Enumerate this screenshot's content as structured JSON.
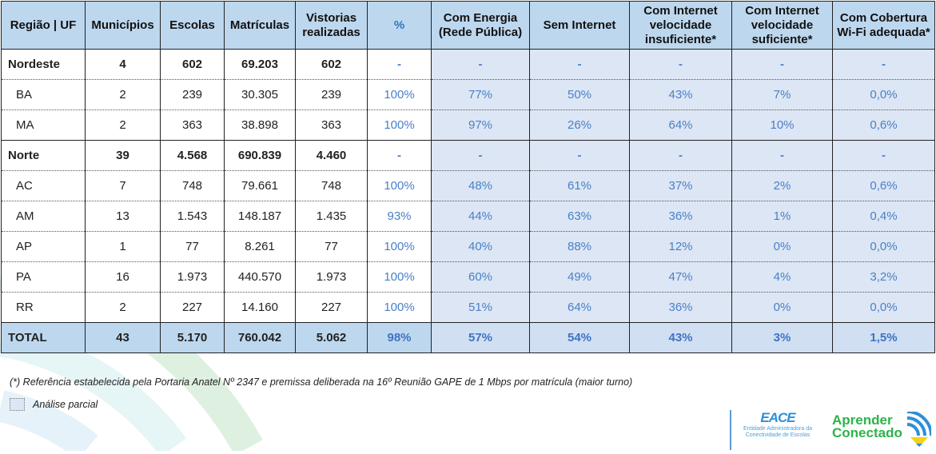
{
  "table": {
    "headers": [
      "Região | UF",
      "Municípios",
      "Escolas",
      "Matrículas",
      "Vistorias realizadas",
      "%",
      "Com Energia (Rede Pública)",
      "Sem Internet",
      "Com Internet velocidade insuficiente*",
      "Com Internet velocidade suficiente*",
      "Com Cobertura Wi-Fi adequada*"
    ],
    "rows": [
      {
        "type": "group",
        "cells": [
          "Nordeste",
          "4",
          "602",
          "69.203",
          "602",
          "-",
          "-",
          "-",
          "-",
          "-",
          "-"
        ]
      },
      {
        "type": "uf",
        "cells": [
          "BA",
          "2",
          "239",
          "30.305",
          "239",
          "100%",
          "77%",
          "50%",
          "43%",
          "7%",
          "0,0%"
        ]
      },
      {
        "type": "uf",
        "cells": [
          "MA",
          "2",
          "363",
          "38.898",
          "363",
          "100%",
          "97%",
          "26%",
          "64%",
          "10%",
          "0,6%"
        ]
      },
      {
        "type": "group",
        "cells": [
          "Norte",
          "39",
          "4.568",
          "690.839",
          "4.460",
          "-",
          "-",
          "-",
          "-",
          "-",
          "-"
        ]
      },
      {
        "type": "uf",
        "cells": [
          "AC",
          "7",
          "748",
          "79.661",
          "748",
          "100%",
          "48%",
          "61%",
          "37%",
          "2%",
          "0,6%"
        ]
      },
      {
        "type": "uf",
        "cells": [
          "AM",
          "13",
          "1.543",
          "148.187",
          "1.435",
          "93%",
          "44%",
          "63%",
          "36%",
          "1%",
          "0,4%"
        ]
      },
      {
        "type": "uf",
        "cells": [
          "AP",
          "1",
          "77",
          "8.261",
          "77",
          "100%",
          "40%",
          "88%",
          "12%",
          "0%",
          "0,0%"
        ]
      },
      {
        "type": "uf",
        "cells": [
          "PA",
          "16",
          "1.973",
          "440.570",
          "1.973",
          "100%",
          "60%",
          "49%",
          "47%",
          "4%",
          "3,2%"
        ]
      },
      {
        "type": "uf",
        "cells": [
          "RR",
          "2",
          "227",
          "14.160",
          "227",
          "100%",
          "51%",
          "64%",
          "36%",
          "0%",
          "0,0%"
        ]
      },
      {
        "type": "total",
        "cells": [
          "TOTAL",
          "43",
          "5.170",
          "760.042",
          "5.062",
          "98%",
          "57%",
          "54%",
          "43%",
          "3%",
          "1,5%"
        ]
      }
    ]
  },
  "footnote": "(*) Referência estabelecida pela Portaria Anatel Nº 2347 e premissa deliberada na 16º Reunião GAPE de 1 Mbps por matrícula (maior turno)",
  "legend": {
    "label": "Análise parcial",
    "color": "#dde6f4"
  },
  "logos": {
    "eace": "EACE",
    "eace_sub": "Entidade Administradora da Conectividade de Escolas",
    "aprender": "Aprender Conectado"
  },
  "colors": {
    "header": "#bdd7ee",
    "partial": "#dde6f4",
    "accent": "#4a80c8"
  }
}
